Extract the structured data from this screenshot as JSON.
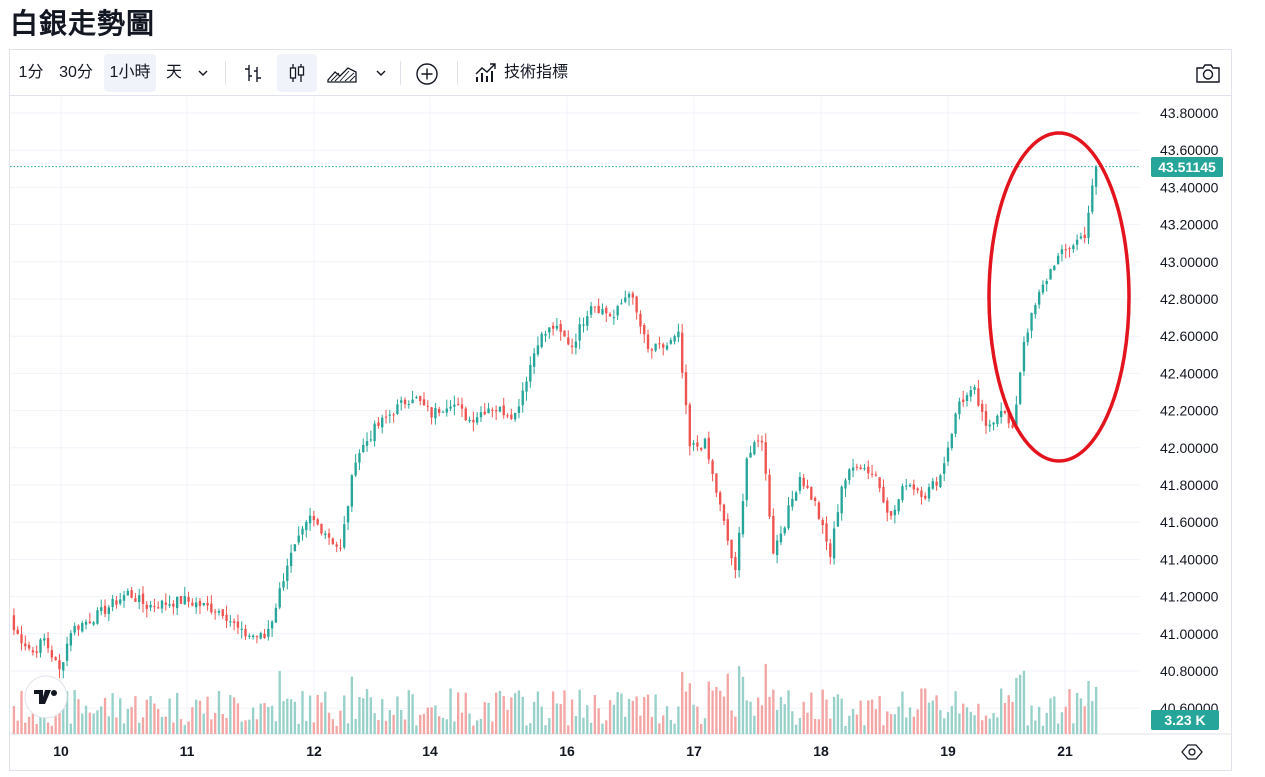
{
  "page": {
    "title": "白銀走勢圖"
  },
  "toolbar": {
    "intervals": [
      "1分",
      "30分",
      "1小時",
      "天"
    ],
    "active_interval": "1小時",
    "indicators_label": "技術指標",
    "icons": [
      "chevron-down-icon",
      "bar-chart-icon",
      "candlestick-icon",
      "area-chart-icon",
      "chevron-down-icon",
      "add-icon",
      "indicators-icon",
      "camera-icon"
    ]
  },
  "colors": {
    "up": "#26a69a",
    "down": "#ef5350",
    "up_vol": "#98d1ca",
    "down_vol": "#f3a6a4",
    "ellipse": "#e3141d",
    "price_line": "#26a69a"
  },
  "chart_data": {
    "type": "candlestick",
    "title": "白銀走勢圖",
    "interval": "1小時",
    "x_tick_labels": [
      "10",
      "11",
      "12",
      "14",
      "16",
      "17",
      "18",
      "19",
      "21"
    ],
    "y_tick_labels": [
      "43.80000",
      "43.60000",
      "43.40000",
      "43.20000",
      "43.00000",
      "42.80000",
      "42.60000",
      "42.40000",
      "42.20000",
      "42.00000",
      "41.80000",
      "41.60000",
      "41.40000",
      "41.20000",
      "41.00000",
      "40.80000",
      "40.60000"
    ],
    "ylim": [
      40.55,
      43.88
    ],
    "last_price": "43.51145",
    "last_volume": "3.23 K",
    "grid": true,
    "annotation": "red ellipse around the final rally",
    "close_path": [
      [
        0,
        41.02
      ],
      [
        5,
        40.9
      ],
      [
        8,
        40.97
      ],
      [
        12,
        40.8
      ],
      [
        15,
        41.02
      ],
      [
        22,
        41.1
      ],
      [
        30,
        41.22
      ],
      [
        35,
        41.15
      ],
      [
        45,
        41.18
      ],
      [
        55,
        41.12
      ],
      [
        60,
        41.0
      ],
      [
        66,
        40.98
      ],
      [
        68,
        41.08
      ],
      [
        72,
        41.38
      ],
      [
        78,
        41.62
      ],
      [
        82,
        41.55
      ],
      [
        86,
        41.45
      ],
      [
        90,
        41.95
      ],
      [
        95,
        42.1
      ],
      [
        100,
        42.2
      ],
      [
        105,
        42.28
      ],
      [
        110,
        42.18
      ],
      [
        115,
        42.25
      ],
      [
        120,
        42.15
      ],
      [
        125,
        42.22
      ],
      [
        132,
        42.18
      ],
      [
        138,
        42.58
      ],
      [
        142,
        42.65
      ],
      [
        147,
        42.55
      ],
      [
        152,
        42.78
      ],
      [
        158,
        42.7
      ],
      [
        162,
        42.85
      ],
      [
        167,
        42.52
      ],
      [
        172,
        42.55
      ],
      [
        175,
        42.6
      ],
      [
        178,
        42.0
      ],
      [
        182,
        42.02
      ],
      [
        186,
        41.68
      ],
      [
        190,
        41.32
      ],
      [
        193,
        41.95
      ],
      [
        197,
        42.05
      ],
      [
        200,
        41.45
      ],
      [
        203,
        41.6
      ],
      [
        207,
        41.85
      ],
      [
        211,
        41.7
      ],
      [
        215,
        41.42
      ],
      [
        218,
        41.8
      ],
      [
        222,
        41.92
      ],
      [
        227,
        41.85
      ],
      [
        231,
        41.62
      ],
      [
        235,
        41.82
      ],
      [
        240,
        41.75
      ],
      [
        244,
        41.85
      ],
      [
        249,
        42.25
      ],
      [
        253,
        42.3
      ],
      [
        256,
        42.1
      ],
      [
        260,
        42.22
      ],
      [
        263,
        42.08
      ],
      [
        266,
        42.58
      ],
      [
        270,
        42.82
      ],
      [
        274,
        43.0
      ],
      [
        278,
        43.08
      ],
      [
        282,
        43.15
      ],
      [
        285,
        43.51145
      ]
    ]
  }
}
